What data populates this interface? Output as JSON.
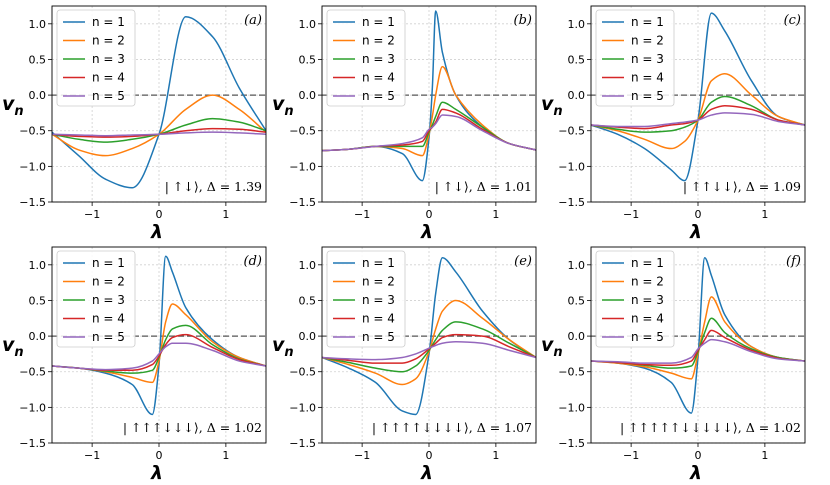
{
  "chart_data": {
    "type": "line",
    "layout": "2x3 grid of subplots",
    "shared": {
      "xlabel": "λ",
      "ylabel": "v",
      "ylabel_sub": "n",
      "xlim": [
        -1.6,
        1.6
      ],
      "ylim": [
        -1.5,
        1.25
      ],
      "xticks": [
        -1,
        0,
        1
      ],
      "xtick_labels": [
        "−1",
        "0",
        "1"
      ],
      "yticks": [
        -1.5,
        -1.0,
        -0.5,
        0.0,
        0.5,
        1.0
      ],
      "ytick_labels": [
        "−1.5",
        "−1.0",
        "−0.5",
        "0.0",
        "0.5",
        "1.0"
      ],
      "grid": true,
      "reference_line": {
        "y": 0.0,
        "style": "dashed",
        "color": "#555555"
      },
      "legend": {
        "placement": "top-left",
        "entries": [
          "n = 1",
          "n = 2",
          "n = 3",
          "n = 4",
          "n = 5"
        ],
        "colors": [
          "#1f77b4",
          "#ff7f0e",
          "#2ca02c",
          "#d62728",
          "#9467bd"
        ]
      }
    },
    "panels": [
      {
        "tag": "(a)",
        "state_label": "| ↑↓⟩, Δ = 1.39",
        "x": [
          -1.6,
          -1.2,
          -0.8,
          -0.4,
          0.0,
          0.4,
          0.8,
          1.2,
          1.6
        ],
        "series": [
          {
            "name": "n = 1",
            "values": [
              -0.52,
              -0.85,
              -1.18,
              -1.3,
              -0.55,
              1.1,
              0.82,
              0.1,
              -0.5
            ]
          },
          {
            "name": "n = 2",
            "values": [
              -0.55,
              -0.77,
              -0.85,
              -0.75,
              -0.55,
              -0.2,
              0.0,
              -0.2,
              -0.52
            ]
          },
          {
            "name": "n = 3",
            "values": [
              -0.55,
              -0.62,
              -0.66,
              -0.62,
              -0.55,
              -0.42,
              -0.33,
              -0.38,
              -0.5
            ]
          },
          {
            "name": "n = 4",
            "values": [
              -0.55,
              -0.58,
              -0.59,
              -0.58,
              -0.55,
              -0.5,
              -0.47,
              -0.48,
              -0.52
            ]
          },
          {
            "name": "n = 5",
            "values": [
              -0.55,
              -0.56,
              -0.57,
              -0.56,
              -0.55,
              -0.53,
              -0.52,
              -0.53,
              -0.55
            ]
          }
        ]
      },
      {
        "tag": "(b)",
        "state_label": "| ↑↓⟩, Δ = 1.01",
        "x": [
          -1.6,
          -1.2,
          -0.8,
          -0.4,
          -0.1,
          0.0,
          0.05,
          0.1,
          0.2,
          0.4,
          0.8,
          1.2,
          1.6
        ],
        "series": [
          {
            "name": "n = 1",
            "values": [
              -0.78,
              -0.76,
              -0.72,
              -0.82,
              -1.2,
              -0.6,
              0.1,
              1.18,
              0.6,
              0.0,
              -0.45,
              -0.68,
              -0.77
            ]
          },
          {
            "name": "n = 2",
            "values": [
              -0.78,
              -0.76,
              -0.72,
              -0.75,
              -0.85,
              -0.55,
              -0.3,
              0.0,
              0.4,
              0.0,
              -0.42,
              -0.68,
              -0.77
            ]
          },
          {
            "name": "n = 3",
            "values": [
              -0.78,
              -0.76,
              -0.72,
              -0.72,
              -0.72,
              -0.52,
              -0.42,
              -0.3,
              -0.1,
              -0.2,
              -0.45,
              -0.68,
              -0.77
            ]
          },
          {
            "name": "n = 4",
            "values": [
              -0.78,
              -0.76,
              -0.72,
              -0.7,
              -0.65,
              -0.5,
              -0.45,
              -0.38,
              -0.2,
              -0.25,
              -0.48,
              -0.68,
              -0.77
            ]
          },
          {
            "name": "n = 5",
            "values": [
              -0.78,
              -0.76,
              -0.72,
              -0.68,
              -0.6,
              -0.48,
              -0.45,
              -0.4,
              -0.28,
              -0.3,
              -0.5,
              -0.68,
              -0.77
            ]
          }
        ]
      },
      {
        "tag": "(c)",
        "state_label": "| ↑↑↓↓⟩, Δ = 1.09",
        "x": [
          -1.6,
          -1.2,
          -0.8,
          -0.4,
          -0.2,
          0.0,
          0.2,
          0.4,
          0.8,
          1.2,
          1.6
        ],
        "series": [
          {
            "name": "n = 1",
            "values": [
              -0.42,
              -0.55,
              -0.75,
              -1.05,
              -1.2,
              -0.35,
              1.15,
              0.9,
              0.2,
              -0.3,
              -0.42
            ]
          },
          {
            "name": "n = 2",
            "values": [
              -0.42,
              -0.5,
              -0.62,
              -0.75,
              -0.65,
              -0.35,
              0.2,
              0.3,
              0.0,
              -0.3,
              -0.42
            ]
          },
          {
            "name": "n = 3",
            "values": [
              -0.42,
              -0.48,
              -0.52,
              -0.5,
              -0.45,
              -0.35,
              -0.1,
              -0.02,
              -0.15,
              -0.35,
              -0.42
            ]
          },
          {
            "name": "n = 4",
            "values": [
              -0.42,
              -0.45,
              -0.47,
              -0.42,
              -0.4,
              -0.35,
              -0.2,
              -0.15,
              -0.2,
              -0.35,
              -0.42
            ]
          },
          {
            "name": "n = 5",
            "values": [
              -0.42,
              -0.44,
              -0.44,
              -0.4,
              -0.38,
              -0.35,
              -0.28,
              -0.25,
              -0.27,
              -0.37,
              -0.42
            ]
          }
        ]
      },
      {
        "tag": "(d)",
        "state_label": "| ↑↑↑↓↓↓⟩, Δ = 1.02",
        "x": [
          -1.6,
          -1.2,
          -0.8,
          -0.4,
          -0.1,
          0.0,
          0.1,
          0.2,
          0.4,
          0.8,
          1.2,
          1.6
        ],
        "series": [
          {
            "name": "n = 1",
            "values": [
              -0.42,
              -0.45,
              -0.52,
              -0.68,
              -1.1,
              -0.4,
              1.12,
              0.9,
              0.4,
              -0.05,
              -0.3,
              -0.42
            ]
          },
          {
            "name": "n = 2",
            "values": [
              -0.42,
              -0.45,
              -0.5,
              -0.58,
              -0.65,
              -0.35,
              0.2,
              0.45,
              0.3,
              -0.08,
              -0.3,
              -0.42
            ]
          },
          {
            "name": "n = 3",
            "values": [
              -0.42,
              -0.45,
              -0.49,
              -0.52,
              -0.48,
              -0.3,
              -0.05,
              0.1,
              0.15,
              -0.12,
              -0.32,
              -0.42
            ]
          },
          {
            "name": "n = 4",
            "values": [
              -0.42,
              -0.45,
              -0.48,
              -0.48,
              -0.4,
              -0.28,
              -0.12,
              -0.02,
              0.02,
              -0.16,
              -0.33,
              -0.42
            ]
          },
          {
            "name": "n = 5",
            "values": [
              -0.42,
              -0.45,
              -0.47,
              -0.45,
              -0.35,
              -0.25,
              -0.15,
              -0.1,
              -0.1,
              -0.2,
              -0.35,
              -0.42
            ]
          }
        ]
      },
      {
        "tag": "(e)",
        "state_label": "| ↑↑↑↑↓↓↓↓⟩, Δ = 1.07",
        "x": [
          -1.6,
          -1.2,
          -0.8,
          -0.4,
          -0.2,
          0.0,
          0.1,
          0.2,
          0.4,
          0.8,
          1.2,
          1.6
        ],
        "series": [
          {
            "name": "n = 1",
            "values": [
              -0.3,
              -0.45,
              -0.65,
              -1.05,
              -1.1,
              -0.25,
              0.6,
              1.1,
              0.9,
              0.35,
              -0.05,
              -0.3
            ]
          },
          {
            "name": "n = 2",
            "values": [
              -0.3,
              -0.4,
              -0.52,
              -0.68,
              -0.6,
              -0.22,
              0.1,
              0.35,
              0.5,
              0.25,
              -0.05,
              -0.3
            ]
          },
          {
            "name": "n = 3",
            "values": [
              -0.3,
              -0.37,
              -0.45,
              -0.5,
              -0.42,
              -0.2,
              -0.05,
              0.08,
              0.2,
              0.1,
              -0.1,
              -0.3
            ]
          },
          {
            "name": "n = 4",
            "values": [
              -0.3,
              -0.34,
              -0.38,
              -0.38,
              -0.32,
              -0.18,
              -0.1,
              -0.02,
              0.02,
              0.0,
              -0.15,
              -0.3
            ]
          },
          {
            "name": "n = 5",
            "values": [
              -0.3,
              -0.32,
              -0.33,
              -0.3,
              -0.25,
              -0.17,
              -0.13,
              -0.1,
              -0.08,
              -0.1,
              -0.2,
              -0.3
            ]
          }
        ]
      },
      {
        "tag": "(f)",
        "state_label": "| ↑↑↑↑↑↓↓↓↓↓⟩, Δ = 1.02",
        "x": [
          -1.6,
          -1.2,
          -0.8,
          -0.4,
          -0.1,
          0.0,
          0.1,
          0.2,
          0.4,
          0.8,
          1.2,
          1.6
        ],
        "series": [
          {
            "name": "n = 1",
            "values": [
              -0.35,
              -0.38,
              -0.45,
              -0.65,
              -1.08,
              -0.3,
              1.1,
              0.85,
              0.3,
              -0.15,
              -0.3,
              -0.35
            ]
          },
          {
            "name": "n = 2",
            "values": [
              -0.35,
              -0.38,
              -0.43,
              -0.52,
              -0.6,
              -0.25,
              0.2,
              0.55,
              0.2,
              -0.15,
              -0.3,
              -0.35
            ]
          },
          {
            "name": "n = 3",
            "values": [
              -0.35,
              -0.37,
              -0.41,
              -0.45,
              -0.42,
              -0.22,
              0.05,
              0.25,
              0.05,
              -0.18,
              -0.3,
              -0.35
            ]
          },
          {
            "name": "n = 4",
            "values": [
              -0.35,
              -0.37,
              -0.4,
              -0.41,
              -0.35,
              -0.2,
              -0.05,
              0.08,
              -0.02,
              -0.2,
              -0.31,
              -0.35
            ]
          },
          {
            "name": "n = 5",
            "values": [
              -0.35,
              -0.36,
              -0.38,
              -0.38,
              -0.3,
              -0.18,
              -0.1,
              -0.05,
              -0.08,
              -0.22,
              -0.32,
              -0.35
            ]
          }
        ]
      }
    ]
  }
}
